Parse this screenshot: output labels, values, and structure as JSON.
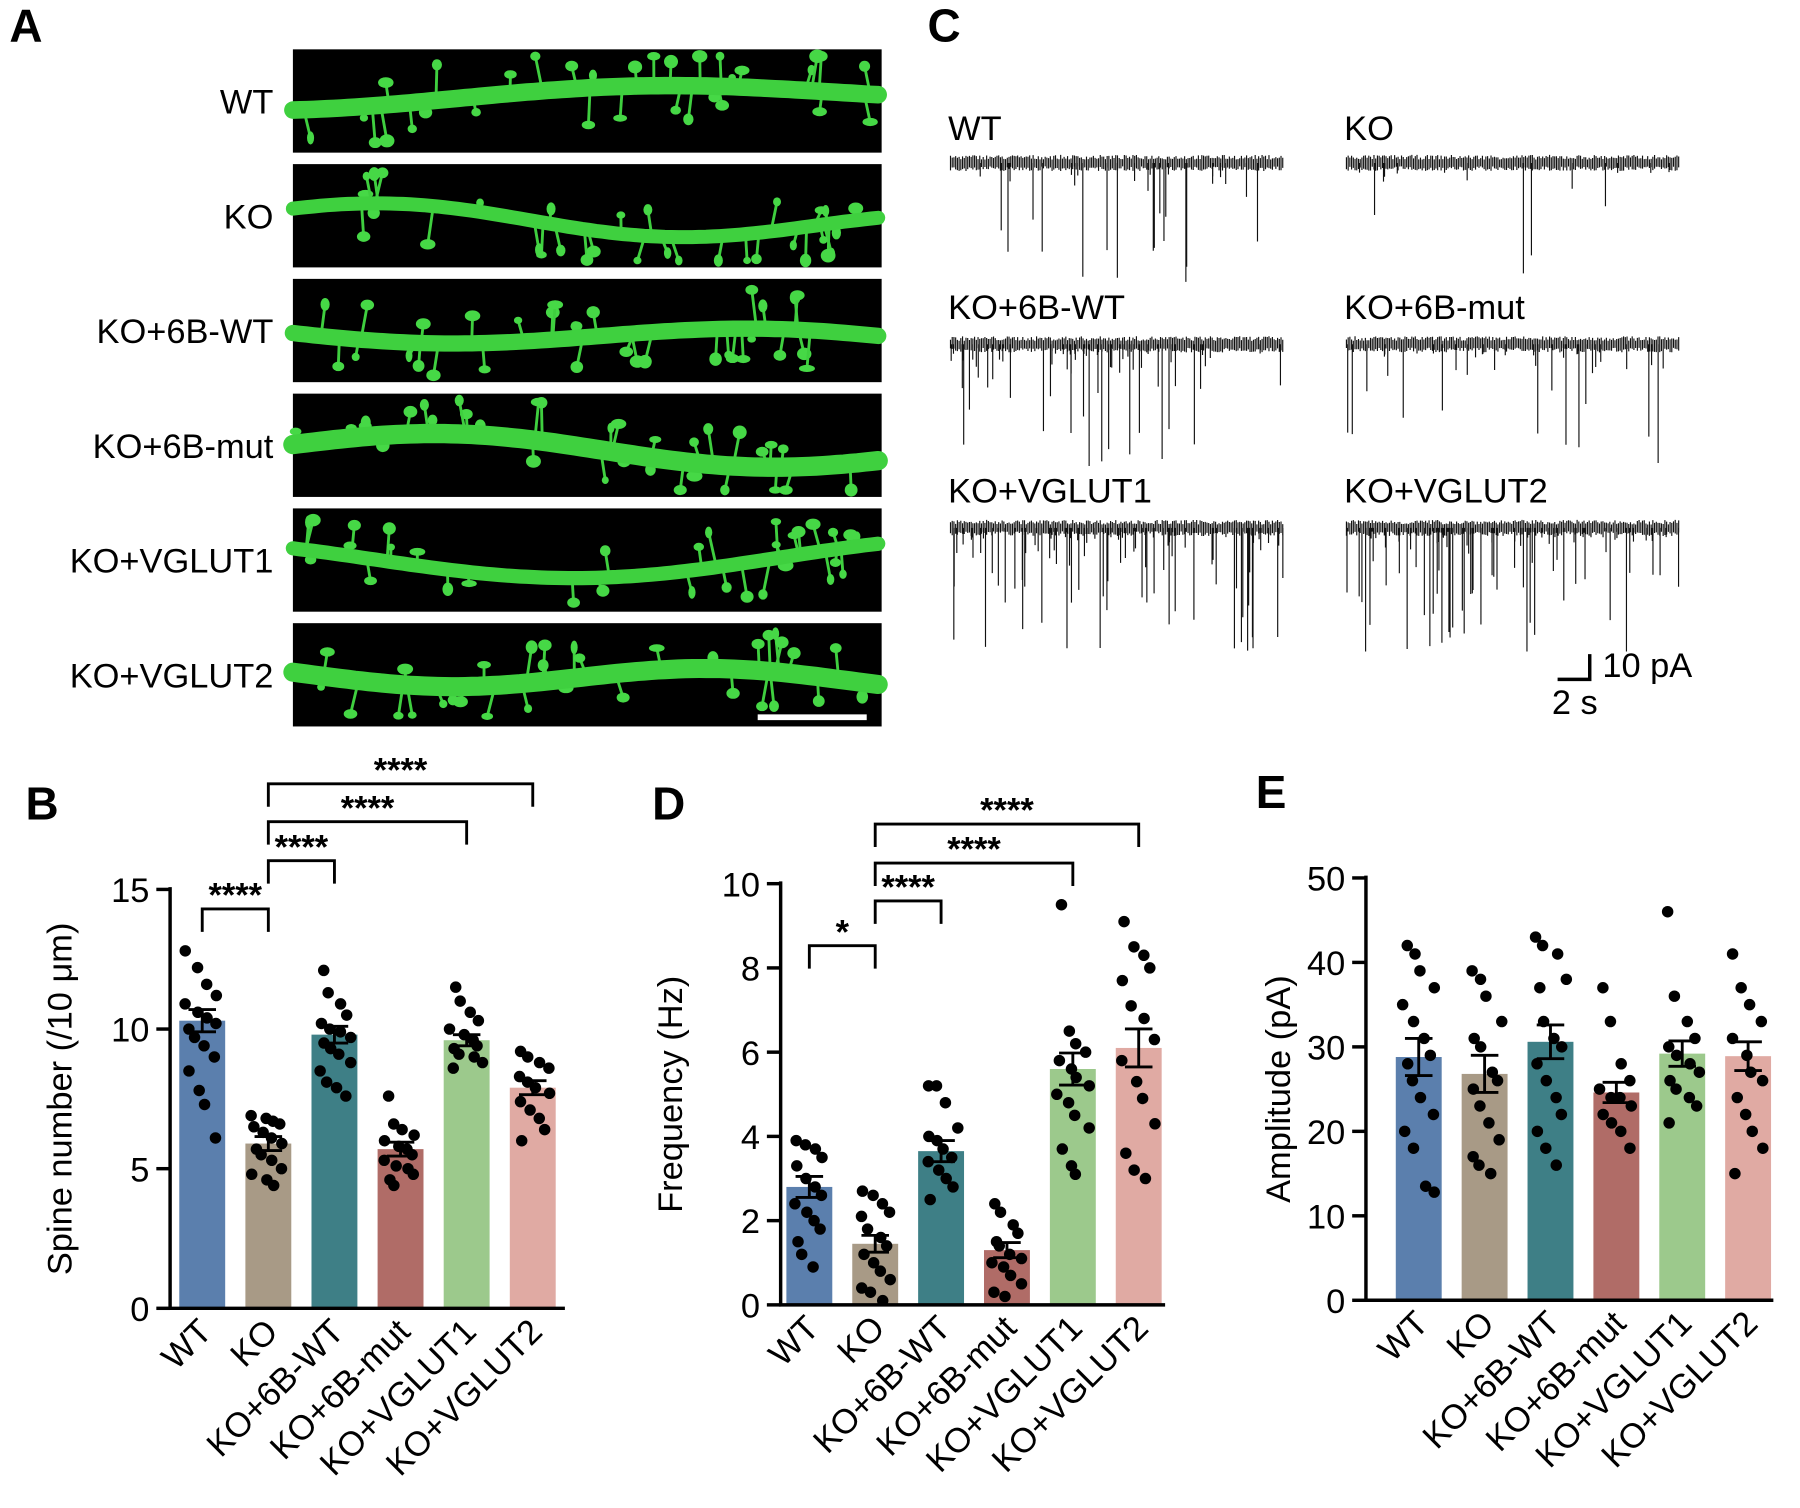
{
  "image_panel": {
    "panel": "A",
    "rows": [
      "WT",
      "KO",
      "KO+6B-WT",
      "KO+6B-mut",
      "KO+VGLUT1",
      "KO+VGLUT2"
    ]
  },
  "trace_panel": {
    "panel": "C",
    "rows": [
      "WT",
      "KO",
      "KO+6B-WT",
      "KO+6B-mut",
      "KO+VGLUT1",
      "KO+VGLUT2"
    ],
    "scale_y": "10 pA",
    "scale_x": "2 s"
  },
  "chart_data": [
    {
      "type": "bar",
      "panel": "B",
      "ylabel": "Spine number (/10 μm)",
      "categories": [
        "WT",
        "KO",
        "KO+6B-WT",
        "KO+6B-mut",
        "KO+VGLUT1",
        "KO+VGLUT2"
      ],
      "values": [
        10.3,
        5.9,
        9.8,
        5.7,
        9.6,
        7.9
      ],
      "errors": [
        0.4,
        0.25,
        0.3,
        0.25,
        0.2,
        0.25
      ],
      "colors": [
        "#5b7fad",
        "#a89a86",
        "#3e7f86",
        "#b06c67",
        "#9cc98c",
        "#e0aaa3"
      ],
      "points": [
        [
          12.8,
          12.2,
          11.6,
          11.2,
          10.9,
          10.6,
          10.4,
          10.2,
          10.0,
          9.7,
          9.4,
          9.0,
          8.5,
          7.8,
          7.3,
          6.1
        ],
        [
          6.9,
          6.8,
          6.7,
          6.6,
          6.5,
          6.3,
          6.1,
          5.9,
          5.7,
          5.5,
          5.3,
          5.0,
          4.8,
          4.6,
          4.4
        ],
        [
          12.1,
          11.3,
          10.9,
          10.5,
          10.2,
          10.0,
          9.9,
          9.7,
          9.5,
          9.3,
          9.1,
          8.8,
          8.5,
          8.1,
          7.9,
          7.6
        ],
        [
          7.6,
          6.6,
          6.4,
          6.2,
          6.0,
          5.8,
          5.7,
          5.5,
          5.3,
          5.1,
          5.0,
          4.8,
          4.6,
          4.4
        ],
        [
          11.5,
          11.0,
          10.6,
          10.3,
          10.0,
          9.8,
          9.6,
          9.4,
          9.3,
          9.1,
          9.0,
          8.8,
          8.6
        ],
        [
          9.2,
          9.0,
          8.8,
          8.6,
          8.3,
          8.1,
          7.9,
          7.7,
          7.4,
          7.1,
          6.8,
          6.4,
          6.0
        ]
      ],
      "ylim": [
        0,
        15
      ],
      "yticks": [
        0,
        5,
        10,
        15
      ],
      "annotations": [
        {
          "from": "WT",
          "to": "KO",
          "label": "****"
        },
        {
          "from": "KO",
          "to": "KO+6B-WT",
          "label": "****"
        },
        {
          "from": "KO",
          "to": "KO+VGLUT1",
          "label": "****"
        },
        {
          "from": "KO",
          "to": "KO+VGLUT2",
          "label": "****"
        }
      ]
    },
    {
      "type": "bar",
      "panel": "D",
      "ylabel": "Frequency (Hz)",
      "categories": [
        "WT",
        "KO",
        "KO+6B-WT",
        "KO+6B-mut",
        "KO+VGLUT1",
        "KO+VGLUT2"
      ],
      "values": [
        2.8,
        1.45,
        3.65,
        1.3,
        5.6,
        6.1
      ],
      "errors": [
        0.25,
        0.2,
        0.25,
        0.18,
        0.38,
        0.45
      ],
      "colors": [
        "#5b7fad",
        "#a89a86",
        "#3e7f86",
        "#b06c67",
        "#9cc98c",
        "#e0aaa3"
      ],
      "points": [
        [
          3.9,
          3.8,
          3.7,
          3.5,
          3.3,
          3.0,
          2.8,
          2.6,
          2.4,
          2.2,
          2.0,
          1.8,
          1.5,
          1.2,
          0.9
        ],
        [
          2.7,
          2.6,
          2.4,
          2.2,
          2.1,
          1.8,
          1.6,
          1.4,
          1.2,
          1.0,
          0.8,
          0.6,
          0.4,
          0.3,
          0.1
        ],
        [
          5.2,
          5.2,
          4.8,
          4.2,
          4.0,
          3.9,
          3.7,
          3.5,
          3.4,
          3.2,
          3.0,
          2.8,
          2.5
        ],
        [
          2.4,
          2.2,
          1.9,
          1.7,
          1.5,
          1.4,
          1.2,
          1.1,
          1.0,
          0.9,
          0.7,
          0.5,
          0.3,
          0.2
        ],
        [
          9.5,
          6.5,
          6.2,
          6.0,
          5.8,
          5.6,
          5.4,
          5.2,
          5.0,
          4.8,
          4.5,
          4.2,
          3.7,
          3.3,
          3.1
        ],
        [
          9.1,
          8.5,
          8.3,
          8.0,
          7.7,
          7.1,
          6.8,
          6.3,
          5.8,
          5.3,
          4.9,
          4.3,
          3.6,
          3.2,
          3.0
        ]
      ],
      "ylim": [
        0,
        10
      ],
      "yticks": [
        0,
        2,
        4,
        6,
        8,
        10
      ],
      "annotations": [
        {
          "from": "WT",
          "to": "KO",
          "label": "*"
        },
        {
          "from": "KO",
          "to": "KO+6B-WT",
          "label": "****"
        },
        {
          "from": "KO",
          "to": "KO+VGLUT1",
          "label": "****"
        },
        {
          "from": "KO",
          "to": "KO+VGLUT2",
          "label": "****"
        }
      ]
    },
    {
      "type": "bar",
      "panel": "E",
      "ylabel": "Amplitude (pA)",
      "categories": [
        "WT",
        "KO",
        "KO+6B-WT",
        "KO+6B-mut",
        "KO+VGLUT1",
        "KO+VGLUT2"
      ],
      "values": [
        28.8,
        26.8,
        30.6,
        24.6,
        29.2,
        28.9
      ],
      "errors": [
        2.2,
        2.2,
        2.0,
        1.2,
        1.5,
        1.7
      ],
      "colors": [
        "#5b7fad",
        "#a89a86",
        "#3e7f86",
        "#b06c67",
        "#9cc98c",
        "#e0aaa3"
      ],
      "points": [
        [
          42,
          41,
          39,
          37,
          35,
          33,
          31,
          29,
          28,
          26,
          24,
          22,
          20,
          18,
          13.5,
          12.8
        ],
        [
          39,
          38,
          36,
          33,
          31,
          30,
          27,
          26,
          25,
          23,
          21,
          19,
          17,
          16,
          15
        ],
        [
          43,
          42,
          41,
          38,
          37,
          33,
          31,
          30,
          28,
          26,
          24,
          22,
          20,
          18,
          16
        ],
        [
          37,
          33,
          28,
          26,
          25,
          24,
          24,
          23,
          22,
          21,
          20,
          18
        ],
        [
          46,
          36,
          33,
          31,
          30,
          29,
          28,
          27,
          26,
          25,
          24,
          23,
          21
        ],
        [
          41,
          37,
          35,
          33,
          31,
          29,
          27,
          26,
          24,
          22,
          20,
          18,
          15
        ]
      ],
      "ylim": [
        0,
        50
      ],
      "yticks": [
        0,
        10,
        20,
        30,
        40,
        50
      ],
      "annotations": []
    }
  ]
}
